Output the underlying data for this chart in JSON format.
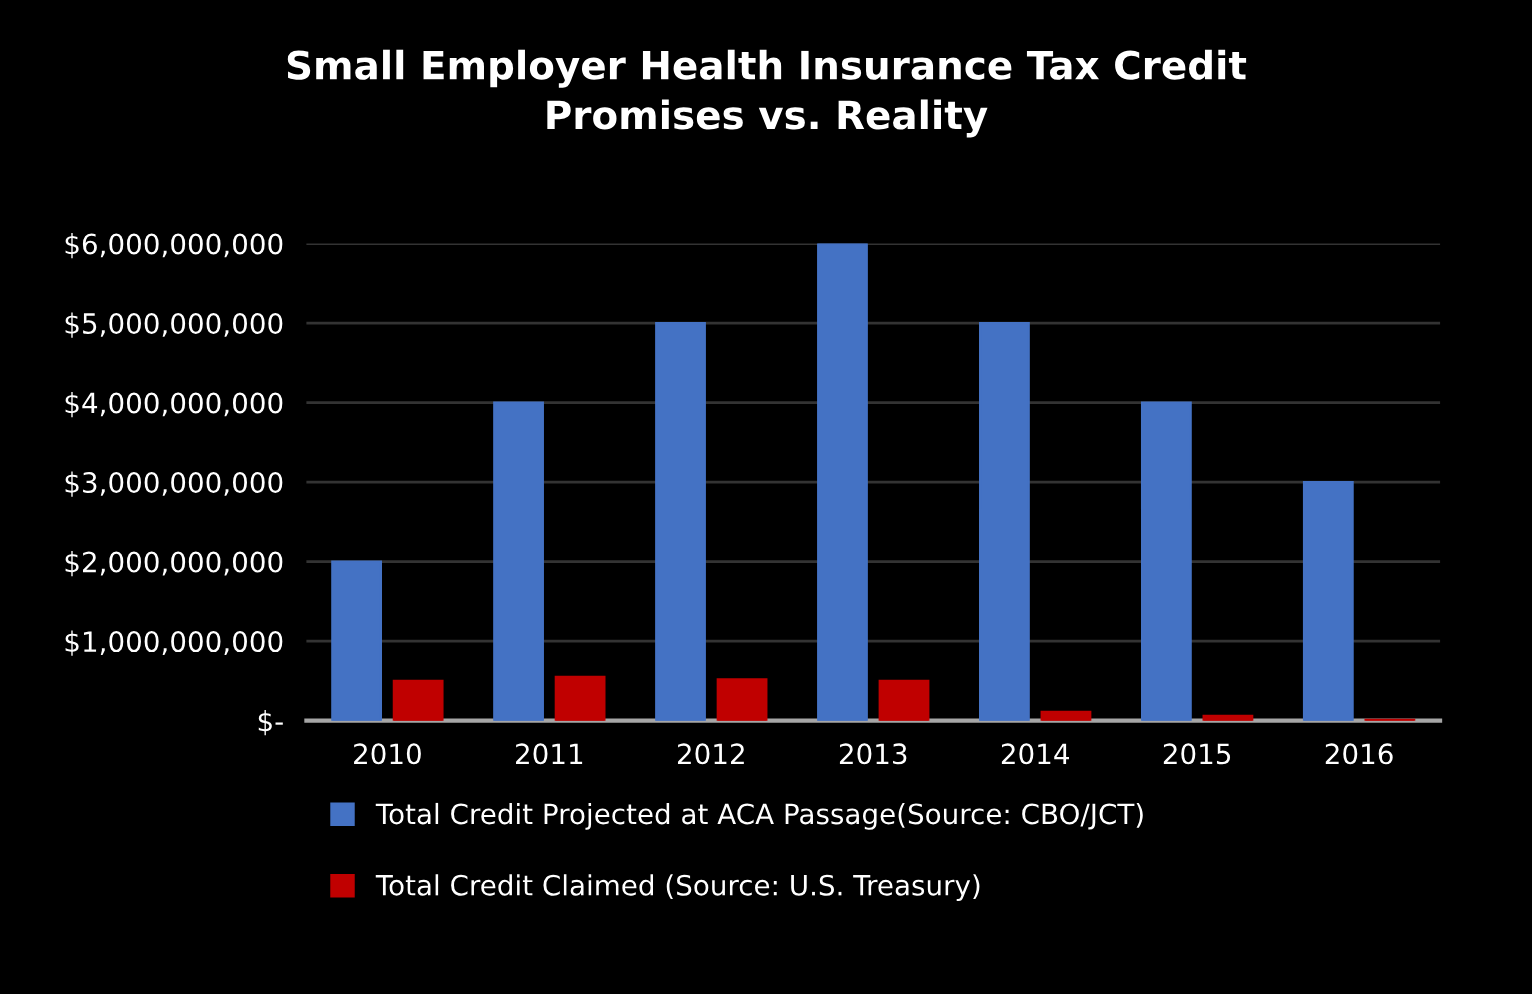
{
  "chart_data": {
    "type": "bar",
    "title": "Small Employer Health Insurance Tax Credit\nPromises vs. Reality",
    "categories": [
      "2010",
      "2011",
      "2012",
      "2013",
      "2014",
      "2015",
      "2016"
    ],
    "series": [
      {
        "name": "Total Credit Projected at ACA Passage(Source: CBO/JCT)",
        "color": "#4472c4",
        "values": [
          2000000000,
          4000000000,
          5000000000,
          6000000000,
          5000000000,
          4000000000,
          3000000000
        ]
      },
      {
        "name": "Total Credit Claimed (Source: U.S. Treasury)",
        "color": "#c00000",
        "values": [
          500000000,
          550000000,
          520000000,
          500000000,
          110000000,
          60000000,
          10000000
        ]
      }
    ],
    "ylim": [
      0,
      6000000000
    ],
    "yticks": [
      {
        "value": 0,
        "label": "$-"
      },
      {
        "value": 1000000000,
        "label": "$1,000,000,000"
      },
      {
        "value": 2000000000,
        "label": "$2,000,000,000"
      },
      {
        "value": 3000000000,
        "label": "$3,000,000,000"
      },
      {
        "value": 4000000000,
        "label": "$4,000,000,000"
      },
      {
        "value": 5000000000,
        "label": "$5,000,000,000"
      },
      {
        "value": 6000000000,
        "label": "$6,000,000,000"
      }
    ],
    "grid": "y",
    "legend": "bottom"
  }
}
